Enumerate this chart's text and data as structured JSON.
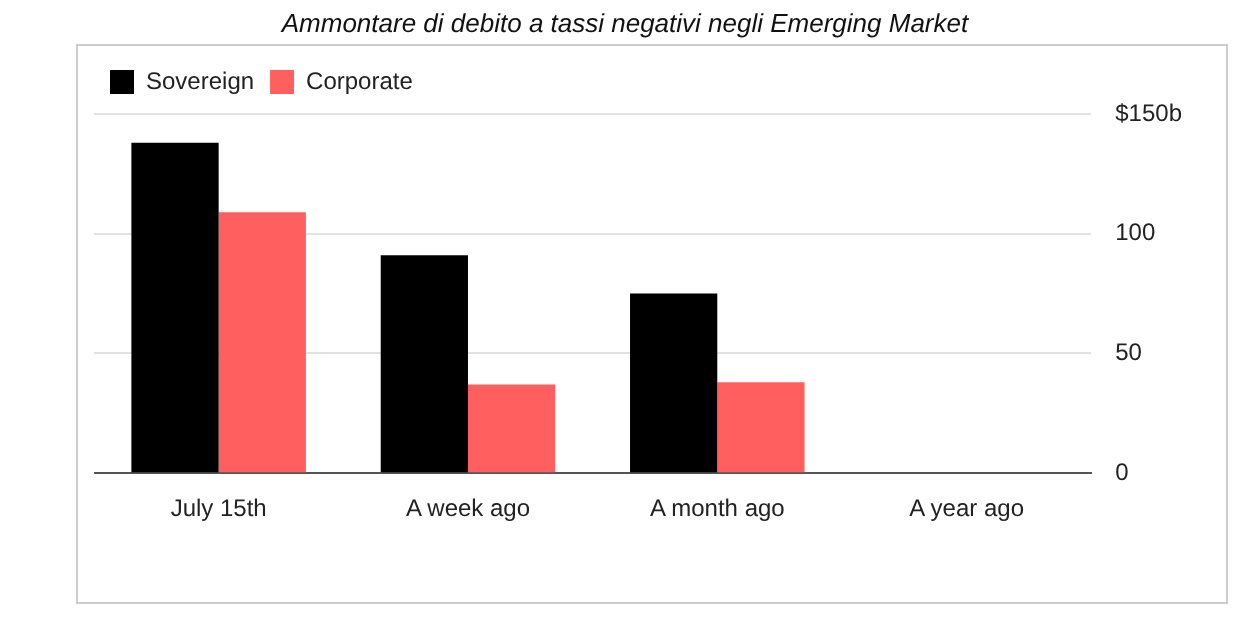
{
  "chart_data": {
    "type": "bar",
    "title": "Ammontare di debito a tassi negativi negli Emerging Market",
    "categories": [
      "July 15th",
      "A week ago",
      "A month ago",
      "A year ago"
    ],
    "series": [
      {
        "name": "Sovereign",
        "color": "#000000",
        "values": [
          138,
          91,
          75,
          0
        ]
      },
      {
        "name": "Corporate",
        "color": "#ff5f5f",
        "values": [
          109,
          37,
          38,
          0
        ]
      }
    ],
    "ylim": [
      0,
      150
    ],
    "yticks": [
      0,
      50,
      100,
      {
        "value": 150,
        "label": "$150b"
      }
    ],
    "grid": "y",
    "legend": "top left"
  }
}
